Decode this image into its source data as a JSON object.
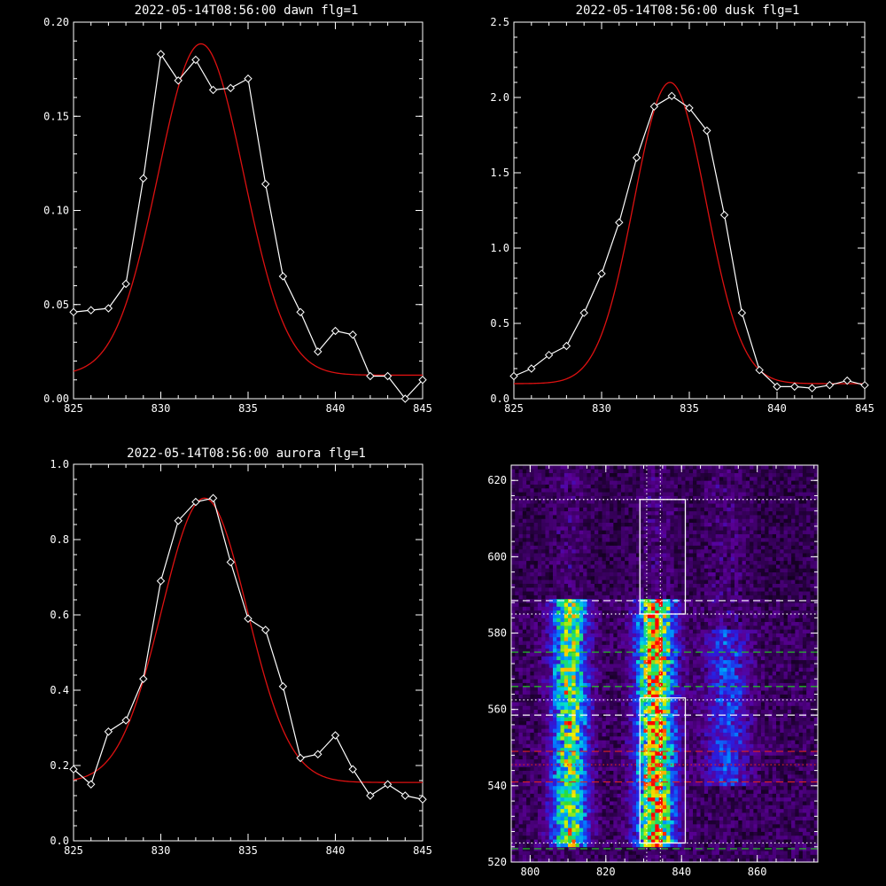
{
  "colors": {
    "background": "#000000",
    "axes": "#ffffff",
    "data_line": "#ffffff",
    "fit_line": "#dd1111",
    "white_dashed": "#ffffff",
    "green_dashed": "#22cc22",
    "red_dashed": "#dd2222"
  },
  "chart_data": [
    {
      "type": "line",
      "title": "2022-05-14T08:56:00 dawn flg=1",
      "xlim": [
        825,
        845
      ],
      "ylim": [
        0,
        0.2
      ],
      "xticks": [
        "825",
        "830",
        "835",
        "840",
        "845"
      ],
      "yticks": [
        "0.00",
        "0.05",
        "0.10",
        "0.15",
        "0.20"
      ],
      "series": [
        {
          "role": "data",
          "marker": "diamond",
          "x": [
            825,
            826,
            827,
            828,
            829,
            830,
            831,
            832,
            833,
            834,
            835,
            836,
            837,
            838,
            839,
            840,
            841,
            842,
            843,
            844,
            845
          ],
          "y": [
            0.046,
            0.047,
            0.048,
            0.061,
            0.117,
            0.183,
            0.169,
            0.18,
            0.164,
            0.165,
            0.17,
            0.114,
            0.065,
            0.046,
            0.025,
            0.036,
            0.034,
            0.012,
            0.012,
            0.0,
            0.01
          ]
        },
        {
          "role": "fit",
          "gaussian": {
            "amplitude": 0.176,
            "center": 832.3,
            "sigma": 2.45,
            "offset": 0.0125
          }
        }
      ]
    },
    {
      "type": "line",
      "title": "2022-05-14T08:56:00 dusk flg=1",
      "xlim": [
        825,
        845
      ],
      "ylim": [
        0,
        2.5
      ],
      "xticks": [
        "825",
        "830",
        "835",
        "840",
        "845"
      ],
      "yticks": [
        "0.0",
        "0.5",
        "1.0",
        "1.5",
        "2.0",
        "2.5"
      ],
      "series": [
        {
          "role": "data",
          "marker": "diamond",
          "x": [
            825,
            826,
            827,
            828,
            829,
            830,
            831,
            832,
            833,
            834,
            835,
            836,
            837,
            838,
            839,
            840,
            841,
            842,
            843,
            844,
            845
          ],
          "y": [
            0.15,
            0.2,
            0.29,
            0.35,
            0.57,
            0.83,
            1.17,
            1.6,
            1.94,
            2.01,
            1.93,
            1.78,
            1.22,
            0.57,
            0.19,
            0.08,
            0.08,
            0.07,
            0.09,
            0.12,
            0.09
          ]
        },
        {
          "role": "fit",
          "gaussian": {
            "amplitude": 2.0,
            "center": 833.9,
            "sigma": 2.05,
            "offset": 0.1
          }
        }
      ]
    },
    {
      "type": "line",
      "title": "2022-05-14T08:56:00 aurora flg=1",
      "xlim": [
        825,
        845
      ],
      "ylim": [
        0,
        1.0
      ],
      "xticks": [
        "825",
        "830",
        "835",
        "840",
        "845"
      ],
      "yticks": [
        "0.0",
        "0.2",
        "0.4",
        "0.6",
        "0.8",
        "1.0"
      ],
      "series": [
        {
          "role": "data",
          "marker": "diamond",
          "x": [
            825,
            826,
            827,
            828,
            829,
            830,
            831,
            832,
            833,
            834,
            835,
            836,
            837,
            838,
            839,
            840,
            841,
            842,
            843,
            844,
            845
          ],
          "y": [
            0.19,
            0.15,
            0.29,
            0.32,
            0.43,
            0.69,
            0.85,
            0.9,
            0.91,
            0.74,
            0.59,
            0.56,
            0.41,
            0.22,
            0.23,
            0.28,
            0.19,
            0.12,
            0.15,
            0.12,
            0.11
          ]
        },
        {
          "role": "fit",
          "gaussian": {
            "amplitude": 0.755,
            "center": 832.5,
            "sigma": 2.45,
            "offset": 0.155
          }
        }
      ]
    },
    {
      "type": "heatmap",
      "xlim": [
        795,
        876
      ],
      "ylim": [
        520,
        624
      ],
      "xticks": [
        "800",
        "820",
        "840",
        "860"
      ],
      "yticks": [
        "520",
        "540",
        "560",
        "580",
        "600",
        "620"
      ],
      "emission_columns": [
        {
          "center": 810.5,
          "width": 3.2,
          "y_range": [
            524,
            588
          ],
          "peak": 0.78
        },
        {
          "center": 833.2,
          "width": 3.4,
          "y_range": [
            524,
            588
          ],
          "peak": 1.0
        },
        {
          "center": 852.0,
          "width": 4.0,
          "y_range": [
            540,
            580
          ],
          "peak": 0.32
        }
      ],
      "vertical_dotted_lines_x": [
        830.8,
        834.4
      ],
      "boxes": [
        {
          "x": [
            829,
            841
          ],
          "y": [
            585,
            615
          ]
        },
        {
          "x": [
            829,
            841
          ],
          "y": [
            525,
            563
          ]
        }
      ],
      "horizontal_lines": [
        {
          "y": 615,
          "style": "dotted",
          "color": "white"
        },
        {
          "y": 588.5,
          "style": "dashed",
          "color": "white"
        },
        {
          "y": 585,
          "style": "dotted",
          "color": "white"
        },
        {
          "y": 575,
          "style": "dashed",
          "color": "green"
        },
        {
          "y": 566,
          "style": "dashed",
          "color": "green"
        },
        {
          "y": 562.5,
          "style": "dotted",
          "color": "white"
        },
        {
          "y": 558.5,
          "style": "dashed",
          "color": "white"
        },
        {
          "y": 549,
          "style": "dashed",
          "color": "red"
        },
        {
          "y": 545.5,
          "style": "dotted",
          "color": "red"
        },
        {
          "y": 541,
          "style": "dashed",
          "color": "red"
        },
        {
          "y": 525,
          "style": "dotted",
          "color": "white"
        },
        {
          "y": 523.5,
          "style": "dashed",
          "color": "green"
        }
      ]
    }
  ]
}
